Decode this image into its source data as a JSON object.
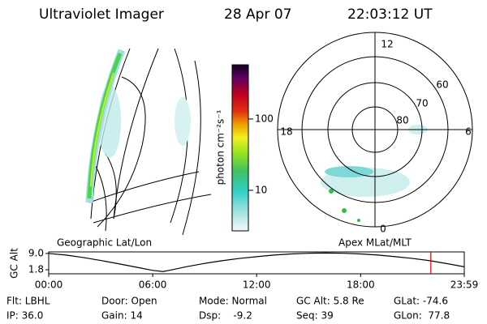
{
  "header": {
    "title": "Ultraviolet Imager",
    "date": "28 Apr 07",
    "time": "22:03:12 UT"
  },
  "colorbar": {
    "label": "photon cm⁻²s⁻¹",
    "scale": "log",
    "lim": [
      2.7,
      575
    ],
    "ticks": [
      10,
      100
    ]
  },
  "polar": {
    "mlt_labels": [
      "12",
      "18",
      "6",
      "0"
    ],
    "lat_labels": [
      "60",
      "70",
      "80"
    ]
  },
  "chart_data": {
    "type": "line",
    "ylabel": "GC Alt",
    "annotations": [
      "Geographic Lat/Lon",
      "Apex MLat/MLT"
    ],
    "x": [
      0,
      1,
      2,
      3,
      4,
      5,
      6,
      6.6,
      7,
      8,
      9,
      10,
      11,
      12,
      13,
      14,
      15,
      16,
      17,
      18,
      19,
      20,
      21,
      22,
      23,
      23.98
    ],
    "values": [
      9.0,
      8.3,
      7.2,
      5.9,
      4.5,
      3.0,
      1.5,
      1.0,
      1.6,
      3.2,
      4.6,
      5.8,
      6.8,
      7.6,
      8.3,
      8.8,
      9.1,
      9.2,
      9.1,
      8.8,
      8.3,
      7.6,
      6.8,
      5.8,
      4.5,
      3.1
    ],
    "color": "#000000",
    "xlim": [
      0,
      23.98
    ],
    "xticks": [
      {
        "value": 0,
        "label": "00:00"
      },
      {
        "value": 6,
        "label": "06:00"
      },
      {
        "value": 12,
        "label": "12:00"
      },
      {
        "value": 18,
        "label": "18:00"
      },
      {
        "value": 23.98,
        "label": "23:59"
      }
    ],
    "ylim": [
      0,
      9.7
    ],
    "yticks": [
      {
        "value": 9.0,
        "label": "9.0"
      },
      1.8
    ],
    "marker_x": 22.05,
    "marker_color": "#e00000"
  },
  "status": [
    [
      "Flt: LBHL",
      "Door: Open",
      "Mode: Normal",
      "GC Alt: 5.8 Re",
      "GLat: -74.6"
    ],
    [
      "IP: 36.0",
      "Gain: 14",
      "Dsp:    -9.2",
      "Seq: 39",
      "GLon:  77.8"
    ]
  ]
}
